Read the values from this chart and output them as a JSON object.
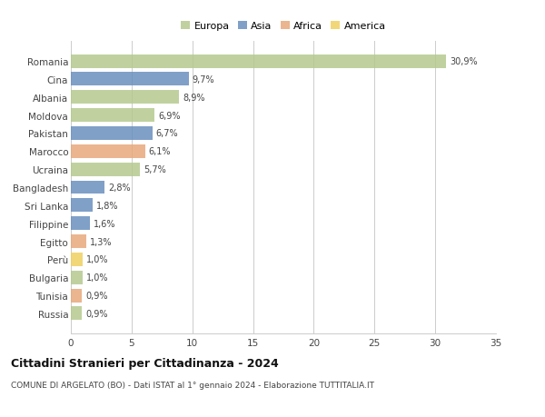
{
  "categories": [
    "Romania",
    "Cina",
    "Albania",
    "Moldova",
    "Pakistan",
    "Marocco",
    "Ucraina",
    "Bangladesh",
    "Sri Lanka",
    "Filippine",
    "Egitto",
    "Perù",
    "Bulgaria",
    "Tunisia",
    "Russia"
  ],
  "values": [
    30.9,
    9.7,
    8.9,
    6.9,
    6.7,
    6.1,
    5.7,
    2.8,
    1.8,
    1.6,
    1.3,
    1.0,
    1.0,
    0.9,
    0.9
  ],
  "labels": [
    "30,9%",
    "9,7%",
    "8,9%",
    "6,9%",
    "6,7%",
    "6,1%",
    "5,7%",
    "2,8%",
    "1,8%",
    "1,6%",
    "1,3%",
    "1,0%",
    "1,0%",
    "0,9%",
    "0,9%"
  ],
  "continents": [
    "Europa",
    "Asia",
    "Europa",
    "Europa",
    "Asia",
    "Africa",
    "Europa",
    "Asia",
    "Asia",
    "Asia",
    "Africa",
    "America",
    "Europa",
    "Africa",
    "Europa"
  ],
  "colors": {
    "Europa": "#b5c98e",
    "Asia": "#6a8fbf",
    "Africa": "#e8a87c",
    "America": "#f0d060"
  },
  "legend_order": [
    "Europa",
    "Asia",
    "Africa",
    "America"
  ],
  "title": "Cittadini Stranieri per Cittadinanza - 2024",
  "subtitle": "COMUNE DI ARGELATO (BO) - Dati ISTAT al 1° gennaio 2024 - Elaborazione TUTTITALIA.IT",
  "xlim": [
    0,
    35
  ],
  "xticks": [
    0,
    5,
    10,
    15,
    20,
    25,
    30,
    35
  ],
  "bg_color": "#ffffff",
  "grid_color": "#cccccc",
  "bar_height": 0.75
}
